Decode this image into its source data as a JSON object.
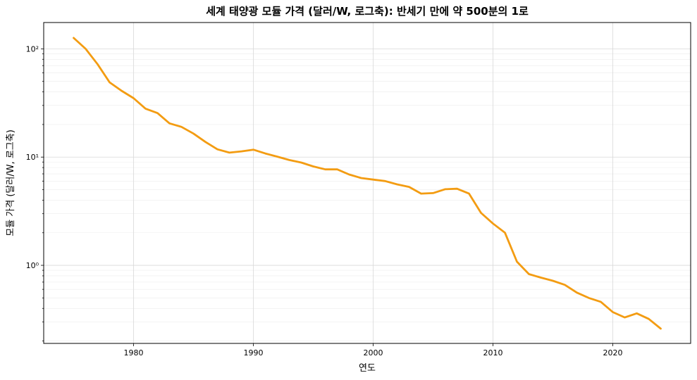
{
  "chart_data": {
    "type": "line",
    "title": "세계 태양광 모듈 가격 (달러/W, 로그축): 반세기 만에 약 500분의 1로",
    "xlabel": "연도",
    "ylabel": "모듈 가격 (달러/W, 로그축)",
    "xlim": [
      1972.5,
      2026.5
    ],
    "ylim": [
      0.19,
      175
    ],
    "yscale": "log",
    "grid": true,
    "x_ticks": [
      1980,
      1990,
      2000,
      2010,
      2020
    ],
    "x_tick_labels": [
      "1980",
      "1990",
      "2000",
      "2010",
      "2020"
    ],
    "y_ticks": [
      1,
      10,
      100
    ],
    "y_tick_labels": [
      "10⁰",
      "10¹",
      "10²"
    ],
    "series": [
      {
        "color": "#f39c12",
        "x": [
          1975,
          1976,
          1977,
          1978,
          1979,
          1980,
          1981,
          1982,
          1983,
          1984,
          1985,
          1986,
          1987,
          1988,
          1989,
          1990,
          1991,
          1992,
          1993,
          1994,
          1995,
          1996,
          1997,
          1998,
          1999,
          2000,
          2001,
          2002,
          2003,
          2004,
          2005,
          2006,
          2007,
          2008,
          2009,
          2010,
          2011,
          2012,
          2013,
          2014,
          2015,
          2016,
          2017,
          2018,
          2019,
          2020,
          2021,
          2022,
          2023,
          2024
        ],
        "y": [
          126,
          100,
          72,
          49,
          41,
          35,
          28,
          25.5,
          20.5,
          19,
          16.5,
          13.8,
          11.8,
          11,
          11.3,
          11.7,
          10.8,
          10.1,
          9.4,
          8.9,
          8.2,
          7.7,
          7.7,
          6.9,
          6.4,
          6.2,
          6.0,
          5.6,
          5.3,
          4.6,
          4.65,
          5.05,
          5.1,
          4.6,
          3.05,
          2.43,
          2.0,
          1.08,
          0.83,
          0.77,
          0.72,
          0.66,
          0.56,
          0.5,
          0.46,
          0.37,
          0.33,
          0.36,
          0.32,
          0.26
        ]
      }
    ]
  }
}
